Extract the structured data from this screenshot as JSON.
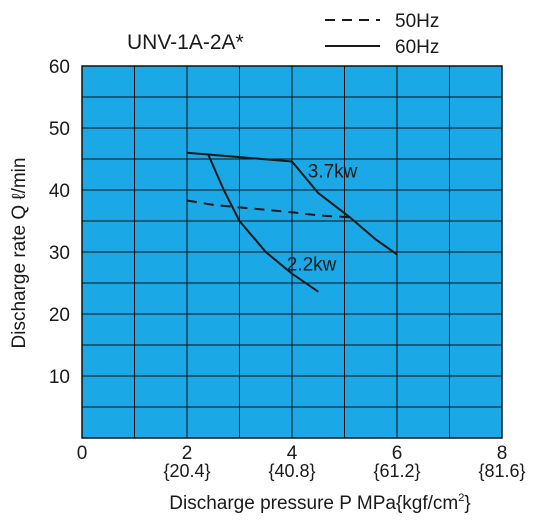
{
  "chart_data": {
    "type": "line",
    "title": "UNV-1A-2A*",
    "xlabel": "Discharge pressure P  MPa{kgf/cm",
    "xlabel_sup": "2",
    "xlabel_close": "}",
    "ylabel": "Discharge rate Q ℓ/min",
    "xlim": [
      0,
      8
    ],
    "ylim": [
      0,
      60
    ],
    "x_major_ticks": [
      0,
      2,
      4,
      6,
      8
    ],
    "x_tick_labels": [
      "0",
      "2",
      "4",
      "6",
      "8"
    ],
    "x_secondary_tick_labels": [
      "",
      "{20.4}",
      "{40.8}",
      "{61.2}",
      "{81.6}"
    ],
    "y_major_ticks": [
      10,
      20,
      30,
      40,
      50,
      60
    ],
    "y_tick_labels": [
      "10",
      "20",
      "30",
      "40",
      "50",
      "60"
    ],
    "grid": true,
    "plot_background": "#1ba8e6",
    "grid_color": "#111111",
    "legend": [
      {
        "label": "50Hz",
        "style": "dashed"
      },
      {
        "label": "60Hz",
        "style": "solid"
      }
    ],
    "legend_position": "top-right",
    "series": [
      {
        "style": "dashed",
        "points": [
          [
            2.0,
            38.3
          ],
          [
            2.5,
            37.6
          ],
          [
            3.0,
            37.2
          ],
          [
            3.5,
            36.8
          ],
          [
            4.0,
            36.4
          ],
          [
            4.5,
            35.9
          ],
          [
            5.1,
            35.6
          ]
        ]
      },
      {
        "style": "solid",
        "points": [
          [
            2.0,
            46.0
          ],
          [
            3.0,
            45.3
          ],
          [
            4.0,
            44.6
          ],
          [
            4.5,
            39.5
          ],
          [
            5.1,
            35.6
          ],
          [
            5.6,
            32.0
          ],
          [
            6.0,
            29.6
          ]
        ]
      },
      {
        "style": "solid",
        "points": [
          [
            2.4,
            45.8
          ],
          [
            2.7,
            40.0
          ],
          [
            3.0,
            35.0
          ],
          [
            3.5,
            30.0
          ],
          [
            4.0,
            26.5
          ],
          [
            4.5,
            23.6
          ]
        ]
      }
    ],
    "annotations": [
      {
        "text": "3.7kw",
        "x": 4.3,
        "y": 42.0
      },
      {
        "text": "2.2kw",
        "x": 3.9,
        "y": 27.0
      }
    ]
  }
}
